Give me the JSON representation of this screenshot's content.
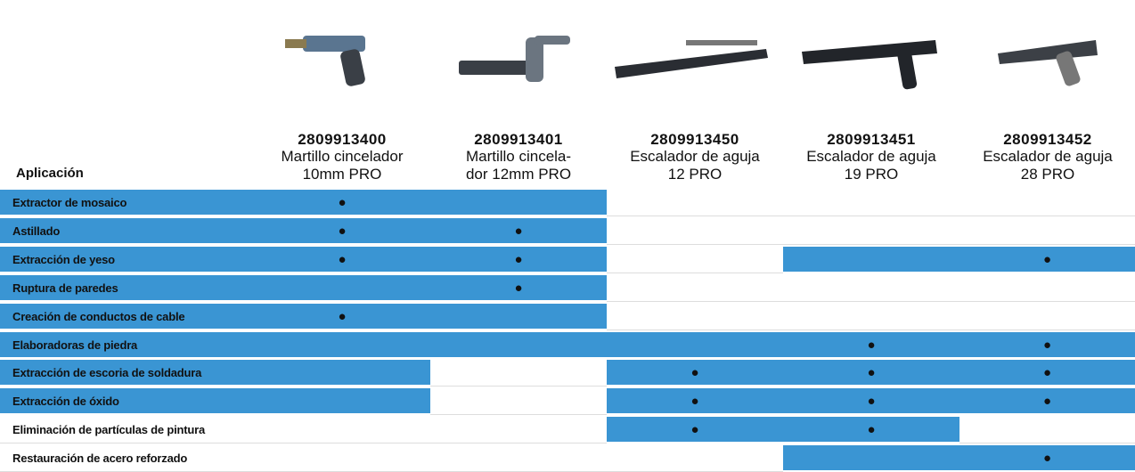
{
  "table": {
    "header": {
      "label": "Aplicación"
    },
    "products": [
      {
        "code": "2809913400",
        "name_lines": [
          "Martillo cincelador",
          "10mm PRO"
        ]
      },
      {
        "code": "2809913401",
        "name_lines": [
          "Martillo cincela-",
          "dor 12mm PRO"
        ]
      },
      {
        "code": "2809913450",
        "name_lines": [
          "Escalador de aguja",
          "12 PRO"
        ]
      },
      {
        "code": "2809913451",
        "name_lines": [
          "Escalador de aguja",
          "19 PRO"
        ]
      },
      {
        "code": "2809913452",
        "name_lines": [
          "Escalador de aguja",
          "28 PRO"
        ]
      }
    ],
    "highlight_color": "#3a95d3",
    "rows": [
      {
        "label": "Extractor de mosaico",
        "fill": [
          true,
          true,
          true,
          false,
          false,
          false
        ],
        "cells": [
          "●",
          null,
          null,
          null,
          null
        ]
      },
      {
        "label": "Astillado",
        "fill": [
          true,
          true,
          true,
          false,
          false,
          false
        ],
        "cells": [
          "●",
          "●",
          null,
          null,
          null
        ]
      },
      {
        "label": "Extracción de yeso",
        "fill": [
          true,
          true,
          true,
          false,
          true,
          true
        ],
        "cells": [
          "●",
          "●",
          null,
          null,
          "●"
        ]
      },
      {
        "label": "Ruptura de paredes",
        "fill": [
          true,
          true,
          true,
          false,
          false,
          false
        ],
        "cells": [
          null,
          "●",
          null,
          null,
          null
        ]
      },
      {
        "label": "Creación de conductos de cable",
        "fill": [
          true,
          true,
          true,
          false,
          false,
          false
        ],
        "cells": [
          "●",
          null,
          null,
          null,
          null
        ]
      },
      {
        "label": "Elaboradoras de piedra",
        "fill": [
          true,
          true,
          true,
          true,
          true,
          true
        ],
        "cells": [
          null,
          null,
          null,
          "●",
          "●"
        ]
      },
      {
        "label": "Extracción de escoria de soldadura",
        "fill": [
          true,
          true,
          false,
          true,
          true,
          true
        ],
        "cells": [
          null,
          null,
          "●",
          "●",
          "●"
        ]
      },
      {
        "label": "Extracción de óxido",
        "fill": [
          true,
          true,
          false,
          true,
          true,
          true
        ],
        "cells": [
          null,
          null,
          "●",
          "●",
          "●"
        ]
      },
      {
        "label": "Eliminación de partículas de pintura",
        "fill": [
          false,
          false,
          false,
          true,
          true,
          false
        ],
        "cells": [
          null,
          null,
          "●",
          "●",
          null
        ]
      },
      {
        "label": "Restauración de acero reforzado",
        "fill": [
          false,
          false,
          false,
          false,
          true,
          true
        ],
        "cells": [
          null,
          null,
          null,
          null,
          "●"
        ]
      }
    ]
  }
}
